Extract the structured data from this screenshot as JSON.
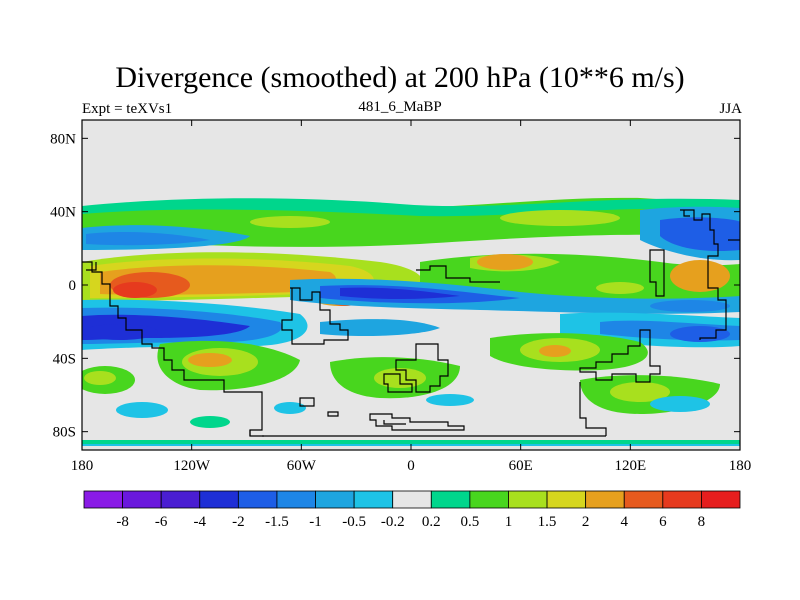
{
  "title": "Divergence (smoothed) at 200 hPa (10**6 m/s)",
  "subtitle_left": "Expt = teXVs1",
  "subtitle_center": "481_6_MaBP",
  "subtitle_right": "JJA",
  "map": {
    "projection": "cylindrical equidistant",
    "lon_range": [
      -180,
      180
    ],
    "lat_range": [
      -90,
      90
    ],
    "background": "#e6e6e6",
    "lat_ticks": [
      {
        "value": 80,
        "label": "80N"
      },
      {
        "value": 40,
        "label": "40N"
      },
      {
        "value": 0,
        "label": "0"
      },
      {
        "value": -40,
        "label": "40S"
      },
      {
        "value": -80,
        "label": "80S"
      }
    ],
    "lon_ticks": [
      {
        "value": -180,
        "label": "180"
      },
      {
        "value": -120,
        "label": "120W"
      },
      {
        "value": -60,
        "label": "60W"
      },
      {
        "value": 0,
        "label": "0"
      },
      {
        "value": 60,
        "label": "60E"
      },
      {
        "value": 120,
        "label": "120E"
      },
      {
        "value": 180,
        "label": "180"
      }
    ]
  },
  "colorbar": {
    "labels": [
      "-8",
      "-6",
      "-4",
      "-2",
      "-1.5",
      "-1",
      "-0.5",
      "-0.2",
      "0.2",
      "0.5",
      "1",
      "1.5",
      "2",
      "4",
      "6",
      "8"
    ],
    "colors": [
      "#8a1be6",
      "#6a18dd",
      "#4a1ed2",
      "#1e2fd6",
      "#1e5ee6",
      "#1e86e6",
      "#1ea5e0",
      "#1ec3e6",
      "#e6e6e6",
      "#00d68c",
      "#48d61e",
      "#a8e01e",
      "#d6d61e",
      "#e6a01e",
      "#e65a1e",
      "#e63a1e",
      "#e61e1e"
    ]
  }
}
